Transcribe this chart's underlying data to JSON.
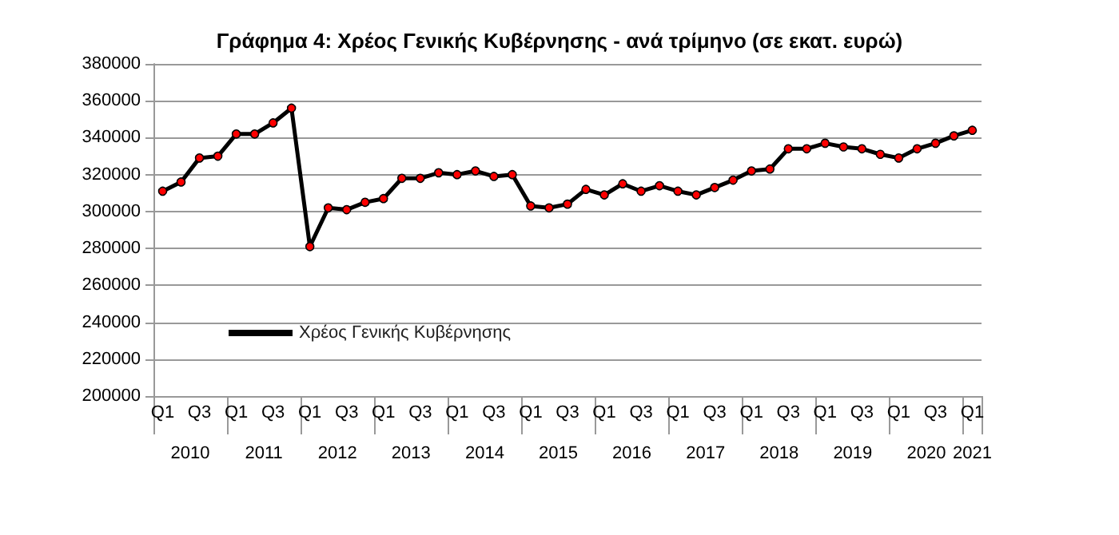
{
  "chart_data": {
    "type": "line",
    "title": "Γράφημα 4: Χρέος Γενικής Κυβέρνησης - ανά τρίμηνο (σε εκατ. ευρώ)",
    "categories": [
      "Q1",
      null,
      "Q3",
      null,
      "Q1",
      null,
      "Q3",
      null,
      "Q1",
      null,
      "Q3",
      null,
      "Q1",
      null,
      "Q3",
      null,
      "Q1",
      null,
      "Q3",
      null,
      "Q1",
      null,
      "Q3",
      null,
      "Q1",
      null,
      "Q3",
      null,
      "Q1",
      null,
      "Q3",
      null,
      "Q1",
      null,
      "Q3",
      null,
      "Q1",
      null,
      "Q3",
      null,
      "Q1",
      null,
      "Q3",
      null,
      "Q1"
    ],
    "series": [
      {
        "name": "Χρέος Γενικής Κυβέρνησης",
        "color": "#ff0000",
        "values": [
          311000,
          316000,
          329000,
          330000,
          342000,
          342000,
          348000,
          356000,
          281000,
          302000,
          301000,
          305000,
          307000,
          318000,
          318000,
          321000,
          320000,
          322000,
          319000,
          320000,
          303000,
          302000,
          304000,
          312000,
          309000,
          315000,
          311000,
          314000,
          311000,
          309000,
          313000,
          317000,
          322000,
          323000,
          334000,
          334000,
          337000,
          335000,
          334000,
          331000,
          329000,
          334000,
          337000,
          341000,
          344000
        ]
      }
    ],
    "annotations": [
      "2010",
      "2011",
      "2012",
      "2013",
      "2014",
      "2015",
      "2016",
      "2017",
      "2018",
      "2019",
      "2020",
      "2021"
    ],
    "ylim": [
      200000,
      380000
    ],
    "yticks": [
      200000,
      220000,
      240000,
      260000,
      280000,
      300000,
      320000,
      340000,
      360000,
      380000
    ],
    "grid": "y",
    "legend": "bottom left",
    "marker": "circle",
    "line_style": "solid"
  }
}
